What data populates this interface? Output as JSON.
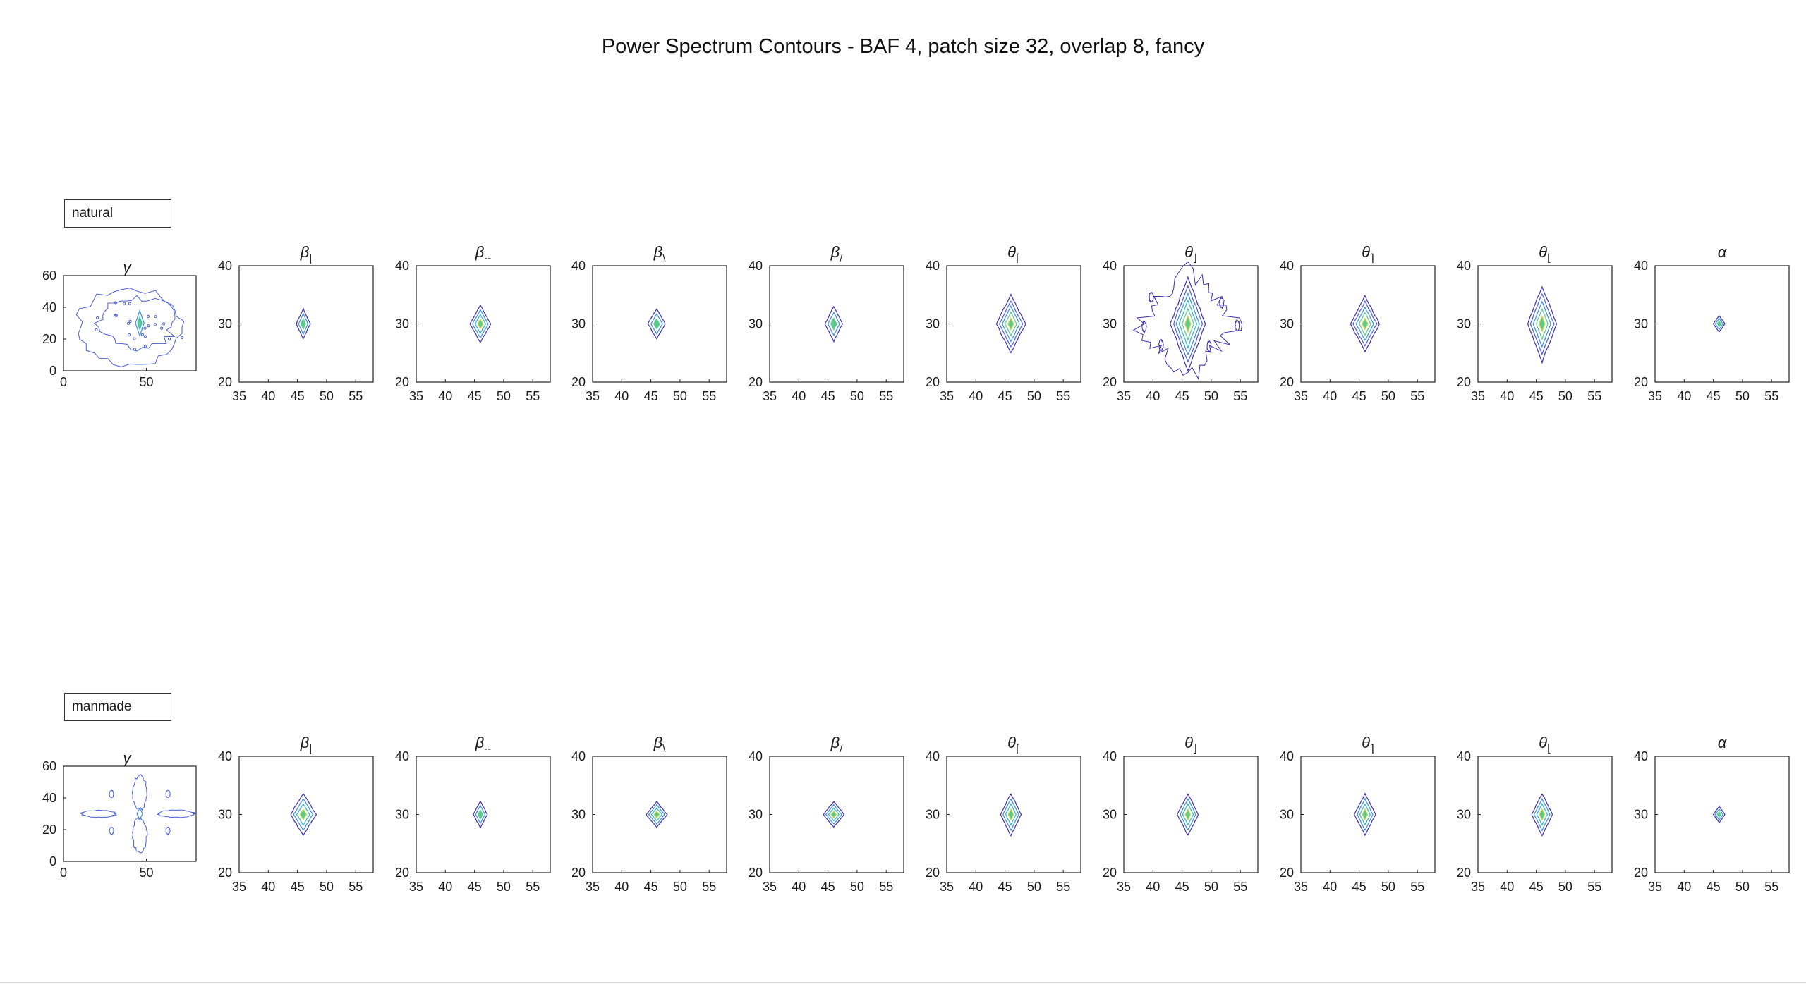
{
  "figure": {
    "title": "Power Spectrum Contours - BAF 4, patch size 32, overlap 8, fancy"
  },
  "groups": [
    {
      "label": "natural"
    },
    {
      "label": "manmade"
    }
  ],
  "chart_data": [
    {
      "type": "contour",
      "group": "natural",
      "titles": [
        "γ",
        "β|",
        "β--",
        "β\\",
        "β/",
        "θ⌈",
        "θ⌋",
        "θ⌉",
        "θ⌊",
        "α"
      ],
      "overview": {
        "title": "γ",
        "xlim": [
          0,
          80
        ],
        "ylim": [
          0,
          60
        ],
        "xticks": [
          0,
          50
        ],
        "yticks": [
          0,
          20,
          40,
          60
        ],
        "peak": [
          46,
          30
        ]
      },
      "zoom": {
        "xlim": [
          35,
          58
        ],
        "ylim": [
          20,
          40
        ],
        "xticks": [
          35,
          40,
          45,
          50,
          55
        ],
        "yticks": [
          20,
          30,
          40
        ]
      },
      "panels": [
        {
          "title": "β|",
          "center": [
            46,
            30
          ],
          "half_width": [
            1.2,
            2.6
          ],
          "levels": 3
        },
        {
          "title": "β--",
          "center": [
            46,
            30
          ],
          "half_width": [
            1.8,
            3.2
          ],
          "levels": 4
        },
        {
          "title": "β\\",
          "center": [
            46,
            30
          ],
          "half_width": [
            1.5,
            2.6
          ],
          "levels": 3
        },
        {
          "title": "β/",
          "center": [
            46,
            30
          ],
          "half_width": [
            1.5,
            3.0
          ],
          "levels": 3
        },
        {
          "title": "θ⌈",
          "center": [
            46,
            30
          ],
          "half_width": [
            2.5,
            5.0
          ],
          "levels": 5
        },
        {
          "title": "θ⌋",
          "center": [
            46,
            30
          ],
          "half_width": [
            3.0,
            8.0
          ],
          "levels": 6,
          "outer_noise": true
        },
        {
          "title": "θ⌉",
          "center": [
            46,
            30
          ],
          "half_width": [
            2.5,
            4.8
          ],
          "levels": 5
        },
        {
          "title": "θ⌊",
          "center": [
            46,
            30
          ],
          "half_width": [
            2.5,
            6.5
          ],
          "levels": 5
        },
        {
          "title": "α",
          "center": [
            46,
            30
          ],
          "half_width": [
            1.0,
            1.4
          ],
          "levels": 3
        }
      ]
    },
    {
      "type": "contour",
      "group": "manmade",
      "titles": [
        "γ",
        "β|",
        "β--",
        "β\\",
        "β/",
        "θ⌈",
        "θ⌋",
        "θ⌉",
        "θ⌊",
        "α"
      ],
      "overview": {
        "title": "γ",
        "xlim": [
          0,
          80
        ],
        "ylim": [
          0,
          60
        ],
        "xticks": [
          0,
          50
        ],
        "yticks": [
          0,
          20,
          40,
          60
        ],
        "peak": [
          46,
          30
        ]
      },
      "zoom": {
        "xlim": [
          35,
          58
        ],
        "ylim": [
          20,
          40
        ],
        "xticks": [
          35,
          40,
          45,
          50,
          55
        ],
        "yticks": [
          20,
          30,
          40
        ]
      },
      "panels": [
        {
          "title": "β|",
          "center": [
            46,
            30
          ],
          "half_width": [
            2.2,
            3.6
          ],
          "levels": 4
        },
        {
          "title": "β--",
          "center": [
            46,
            30
          ],
          "half_width": [
            1.2,
            2.3
          ],
          "levels": 3
        },
        {
          "title": "β\\",
          "center": [
            46,
            30
          ],
          "half_width": [
            1.8,
            2.2
          ],
          "levels": 4
        },
        {
          "title": "β/",
          "center": [
            46,
            30
          ],
          "half_width": [
            1.8,
            2.2
          ],
          "levels": 4
        },
        {
          "title": "θ⌈",
          "center": [
            46,
            30
          ],
          "half_width": [
            1.8,
            3.6
          ],
          "levels": 4
        },
        {
          "title": "θ⌋",
          "center": [
            46,
            30
          ],
          "half_width": [
            1.8,
            3.6
          ],
          "levels": 4
        },
        {
          "title": "θ⌉",
          "center": [
            46,
            30
          ],
          "half_width": [
            1.8,
            3.6
          ],
          "levels": 4
        },
        {
          "title": "θ⌊",
          "center": [
            46,
            30
          ],
          "half_width": [
            1.8,
            3.6
          ],
          "levels": 4
        },
        {
          "title": "α",
          "center": [
            46,
            30
          ],
          "half_width": [
            1.0,
            1.4
          ],
          "levels": 3
        }
      ]
    }
  ]
}
